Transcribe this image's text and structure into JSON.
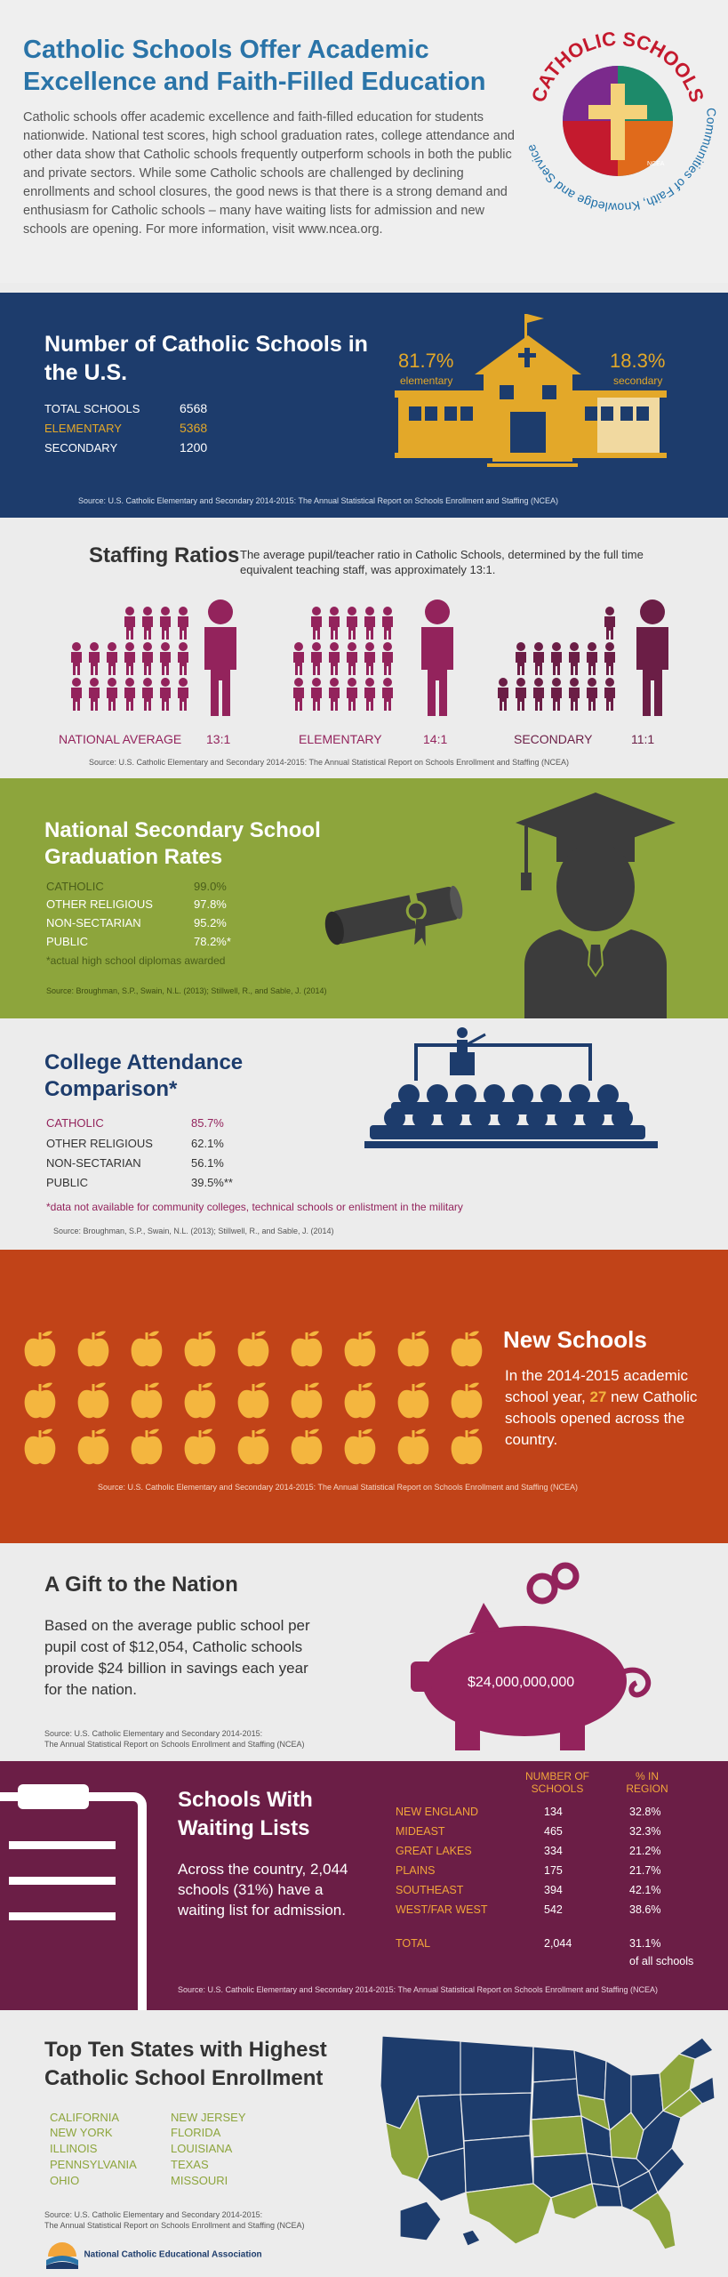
{
  "header": {
    "title": "Catholic Schools Offer Academic Excellence and Faith-Filled Education",
    "intro": "Catholic schools offer academic excellence and faith-filled education for students nationwide.  National test scores, high school graduation rates, college attendance and other data show that Catholic schools frequently outperform schools in both the public and private sectors. While some Catholic schools are challenged by declining enrollments and school closures, the good news is that there is a strong demand and enthusiasm for Catholic schools – many have waiting lists for admission and new schools are opening. For more information, visit www.ncea.org.",
    "logo_top": "CATHOLIC SCHOOLS",
    "logo_bottom": "Communities of Faith, Knowledge and Service",
    "logo_small": "NCEA"
  },
  "school_count": {
    "title": "Number of Catholic Schools in the U.S.",
    "rows": [
      {
        "label": "TOTAL SCHOOLS",
        "value": "6568"
      },
      {
        "label": "ELEMENTARY",
        "value": "5368"
      },
      {
        "label": "SECONDARY",
        "value": "1200"
      }
    ],
    "elementary_pct": "81.7%",
    "elementary_label": "elementary",
    "secondary_pct": "18.3%",
    "secondary_label": "secondary",
    "source": "Source: U.S. Catholic Elementary and Secondary 2014-2015: The Annual Statistical Report on Schools Enrollment and Staffing (NCEA)"
  },
  "staffing": {
    "title": "Staffing Ratios",
    "description": "The average pupil/teacher ratio in Catholic Schools, determined by the full time equivalent teaching staff, was approximately 13:1.",
    "groups": [
      {
        "label": "NATIONAL AVERAGE",
        "ratio": "13:1"
      },
      {
        "label": "ELEMENTARY",
        "ratio": "14:1"
      },
      {
        "label": "SECONDARY",
        "ratio": "11:1"
      }
    ],
    "source": "Source: U.S. Catholic Elementary and Secondary 2014-2015: The Annual Statistical Report on Schools Enrollment and Staffing (NCEA)"
  },
  "graduation": {
    "title": "National Secondary School Graduation Rates",
    "rows": [
      {
        "label": "CATHOLIC",
        "value": "99.0%"
      },
      {
        "label": "OTHER RELIGIOUS",
        "value": "97.8%"
      },
      {
        "label": "NON-SECTARIAN",
        "value": "95.2%"
      },
      {
        "label": "PUBLIC",
        "value": "78.2%*"
      }
    ],
    "note": "*actual high school diplomas awarded",
    "source": "Source:  Broughman, S.P., Swain, N.L. (2013); Stillwell, R., and Sable, J. (2014)"
  },
  "college": {
    "title": "College Attendance Comparison*",
    "rows": [
      {
        "label": "CATHOLIC",
        "value": "85.7%"
      },
      {
        "label": "OTHER RELIGIOUS",
        "value": "62.1%"
      },
      {
        "label": "NON-SECTARIAN",
        "value": "56.1%"
      },
      {
        "label": "PUBLIC",
        "value": "39.5%**"
      }
    ],
    "note": "*data not available for community colleges, technical schools or enlistment in the military",
    "source": "Source:  Broughman, S.P., Swain, N.L. (2013); Stillwell, R., and Sable, J. (2014)"
  },
  "new_schools": {
    "title": "New Schools",
    "text_before": "In the 2014-2015 academic school year, ",
    "count": "27",
    "text_after": " new Catholic schools opened across the country.",
    "source": "Source: U.S. Catholic Elementary and Secondary 2014-2015: The Annual Statistical Report on Schools Enrollment and Staffing (NCEA)"
  },
  "gift": {
    "title": "A Gift to the Nation",
    "text": "Based on the average public school per pupil cost of $12,054, Catholic schools provide $24 billion in savings each year for the nation.",
    "amount": "$24,000,000,000",
    "source_line1": "Source: U.S. Catholic Elementary and Secondary 2014-2015:",
    "source_line2": "The Annual Statistical Report on Schools Enrollment and Staffing (NCEA)"
  },
  "waiting": {
    "title": "Schools With Waiting Lists",
    "text": "Across the country, 2,044 schools (31%) have a waiting list for admission.",
    "col_schools_1": "NUMBER OF",
    "col_schools_2": "SCHOOLS",
    "col_pct_1": "% IN",
    "col_pct_2": "REGION",
    "rows": [
      {
        "region": "NEW ENGLAND",
        "schools": "134",
        "pct": "32.8%"
      },
      {
        "region": "MIDEAST",
        "schools": "465",
        "pct": "32.3%"
      },
      {
        "region": "GREAT LAKES",
        "schools": "334",
        "pct": "21.2%"
      },
      {
        "region": "PLAINS",
        "schools": "175",
        "pct": "21.7%"
      },
      {
        "region": "SOUTHEAST",
        "schools": "394",
        "pct": "42.1%"
      },
      {
        "region": "WEST/FAR WEST",
        "schools": "542",
        "pct": "38.6%"
      }
    ],
    "total_label": "TOTAL",
    "total_schools": "2,044",
    "total_pct": "31.1%",
    "total_note": "of all schools",
    "source": "Source: U.S. Catholic Elementary and Secondary 2014-2015: The Annual Statistical Report on Schools Enrollment and Staffing (NCEA)"
  },
  "top_states": {
    "title": "Top Ten States with Highest Catholic School Enrollment",
    "col1": [
      "CALIFORNIA",
      "NEW YORK",
      "ILLINOIS",
      "PENNSYLVANIA",
      "OHIO"
    ],
    "col2": [
      "NEW JERSEY",
      "FLORIDA",
      "LOUISIANA",
      "TEXAS",
      "MISSOURI"
    ],
    "source_line1": "Source: U.S. Catholic Elementary and Secondary 2014-2015:",
    "source_line2": "The Annual Statistical Report on Schools Enrollment and Staffing (NCEA)",
    "org": "National Catholic Educational Association"
  },
  "colors": {
    "navy": "#1d3c6c",
    "gold": "#e3a829",
    "plum": "#93235c",
    "olive": "#8da53c",
    "rust": "#c14318",
    "wine": "#6b1e46",
    "blue_title": "#2a74a8"
  }
}
